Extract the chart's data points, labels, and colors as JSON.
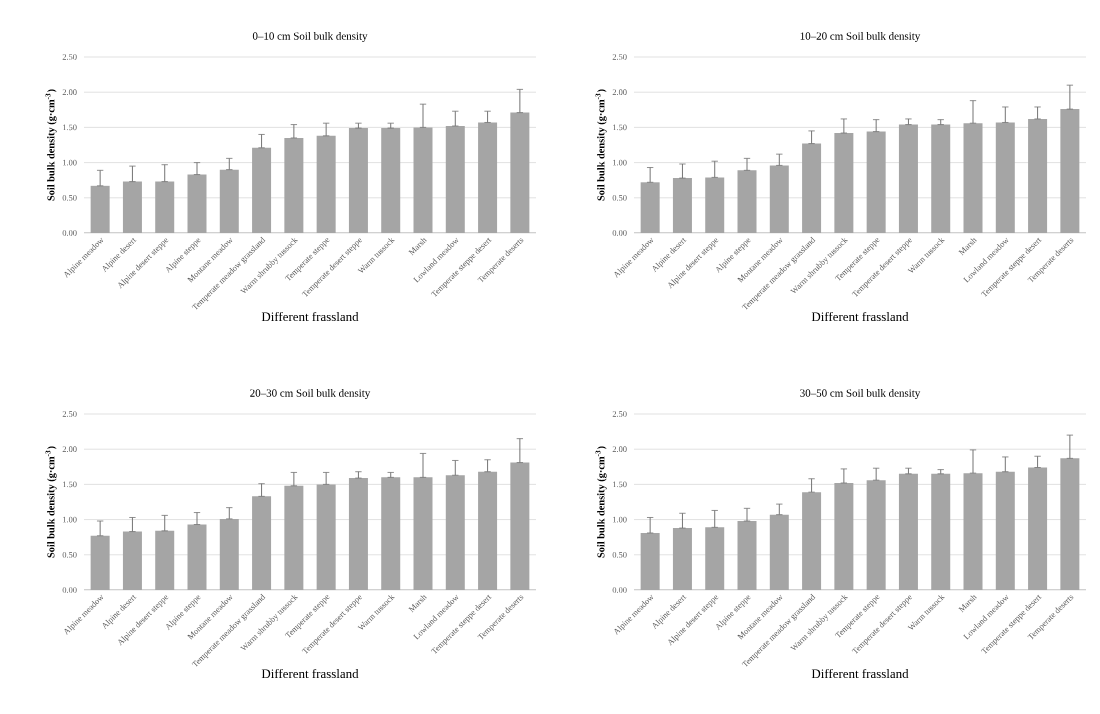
{
  "chart_data": [
    {
      "type": "bar",
      "title": "0–10 cm Soil bulk density",
      "xlabel": "Different frassland",
      "ylabel": "Soil bulk density (g·cm$^{-3}$)",
      "color": "#a5a5a5",
      "grid": "y",
      "ylim": [
        0,
        2.5
      ],
      "yticks": [
        {
          "value": 0,
          "label": "0.00"
        },
        {
          "value": 0.5,
          "label": "0.50"
        },
        {
          "value": 1,
          "label": "1.00"
        },
        {
          "value": 1.5,
          "label": "1.50"
        },
        {
          "value": 2,
          "label": "2.00"
        },
        {
          "value": 2.5,
          "label": "2.50"
        }
      ],
      "categories": [
        "Alpine meadow",
        "Alpine desert",
        "Alpine desert steppe",
        "Alpine steppe",
        "Montane meadow",
        "Temperate meadow grassland",
        "Warm shrubby tussock",
        "Temperate steppe",
        "Temperate desert steppe",
        "Warm tussock",
        "Marsh",
        "Lowland meadow",
        "Temperate steppe desert",
        "Temperate deserts"
      ],
      "values": [
        0.67,
        0.73,
        0.73,
        0.83,
        0.9,
        1.21,
        1.35,
        1.38,
        1.49,
        1.49,
        1.5,
        1.52,
        1.57,
        1.71
      ],
      "errors": [
        [
          0.67,
          0.89
        ],
        [
          0.73,
          0.95
        ],
        [
          0.73,
          0.97
        ],
        [
          0.83,
          1.0
        ],
        [
          0.9,
          1.06
        ],
        [
          1.21,
          1.4
        ],
        [
          1.35,
          1.54
        ],
        [
          1.38,
          1.56
        ],
        [
          1.49,
          1.56
        ],
        [
          1.49,
          1.56
        ],
        [
          1.5,
          1.83
        ],
        [
          1.52,
          1.73
        ],
        [
          1.57,
          1.73
        ],
        [
          1.71,
          2.04
        ]
      ]
    },
    {
      "type": "bar",
      "title": "10–20 cm Soil bulk density",
      "xlabel": "Different frassland",
      "ylabel": "Soil bulk density (g·cm$^{-3}$)",
      "color": "#a5a5a5",
      "grid": "y",
      "ylim": [
        0,
        2.5
      ],
      "yticks": [
        {
          "value": 0,
          "label": "0.00"
        },
        {
          "value": 0.5,
          "label": "0.50"
        },
        {
          "value": 1,
          "label": "1.00"
        },
        {
          "value": 1.5,
          "label": "1.50"
        },
        {
          "value": 2,
          "label": "2.00"
        },
        {
          "value": 2.5,
          "label": "2.50"
        }
      ],
      "categories": [
        "Alpine meadow",
        "Alpine desert",
        "Alpine desert steppe",
        "Alpine steppe",
        "Montane meadow",
        "Temperate meadow grassland",
        "Warm shrubby tussock",
        "Temperate steppe",
        "Temperate desert steppe",
        "Warm tussock",
        "Marsh",
        "Lowland meadow",
        "Temperate steppe desert",
        "Temperate deserts"
      ],
      "values": [
        0.72,
        0.78,
        0.79,
        0.89,
        0.96,
        1.27,
        1.42,
        1.44,
        1.54,
        1.54,
        1.56,
        1.57,
        1.62,
        1.76
      ],
      "errors": [
        [
          0.72,
          0.93
        ],
        [
          0.78,
          0.98
        ],
        [
          0.79,
          1.02
        ],
        [
          0.89,
          1.06
        ],
        [
          0.96,
          1.12
        ],
        [
          1.27,
          1.45
        ],
        [
          1.42,
          1.62
        ],
        [
          1.44,
          1.61
        ],
        [
          1.54,
          1.62
        ],
        [
          1.54,
          1.61
        ],
        [
          1.56,
          1.88
        ],
        [
          1.57,
          1.79
        ],
        [
          1.62,
          1.79
        ],
        [
          1.76,
          2.1
        ]
      ]
    },
    {
      "type": "bar",
      "title": "20–30 cm Soil bulk density",
      "xlabel": "Different frassland",
      "ylabel": "Soil bulk density (g·cm$^{-3}$)",
      "color": "#a5a5a5",
      "grid": "y",
      "ylim": [
        0,
        2.5
      ],
      "yticks": [
        {
          "value": 0,
          "label": "0.00"
        },
        {
          "value": 0.5,
          "label": "0.50"
        },
        {
          "value": 1,
          "label": "1.00"
        },
        {
          "value": 1.5,
          "label": "1.50"
        },
        {
          "value": 2,
          "label": "2.00"
        },
        {
          "value": 2.5,
          "label": "2.50"
        }
      ],
      "categories": [
        "Alpine meadow",
        "Alpine desert",
        "Alpine desert steppe",
        "Alpine steppe",
        "Montane meadow",
        "Temperate meadow grassland",
        "Warm shrubby tussock",
        "Temperate steppe",
        "Temperate desert steppe",
        "Warm tussock",
        "Marsh",
        "Lowland meadow",
        "Temperate steppe desert",
        "Temperate deserts"
      ],
      "values": [
        0.77,
        0.83,
        0.84,
        0.93,
        1.01,
        1.33,
        1.48,
        1.5,
        1.59,
        1.6,
        1.6,
        1.63,
        1.68,
        1.81
      ],
      "errors": [
        [
          0.77,
          0.98
        ],
        [
          0.83,
          1.03
        ],
        [
          0.84,
          1.06
        ],
        [
          0.93,
          1.1
        ],
        [
          1.01,
          1.17
        ],
        [
          1.33,
          1.51
        ],
        [
          1.48,
          1.67
        ],
        [
          1.5,
          1.67
        ],
        [
          1.59,
          1.68
        ],
        [
          1.6,
          1.67
        ],
        [
          1.6,
          1.94
        ],
        [
          1.63,
          1.84
        ],
        [
          1.68,
          1.85
        ],
        [
          1.81,
          2.15
        ]
      ]
    },
    {
      "type": "bar",
      "title": "30–50 cm Soil bulk density",
      "xlabel": "Different frassland",
      "ylabel": "Soil bulk density (g·cm$^{-3}$)",
      "color": "#a5a5a5",
      "grid": "y",
      "ylim": [
        0,
        2.5
      ],
      "yticks": [
        {
          "value": 0,
          "label": "0.00"
        },
        {
          "value": 0.5,
          "label": "0.50"
        },
        {
          "value": 1,
          "label": "1.00"
        },
        {
          "value": 1.5,
          "label": "1.50"
        },
        {
          "value": 2,
          "label": "2.00"
        },
        {
          "value": 2.5,
          "label": "2.50"
        }
      ],
      "categories": [
        "Alpine meadow",
        "Alpine desert",
        "Alpine desert steppe",
        "Alpine steppe",
        "Montane meadow",
        "Temperate meadow grassland",
        "Warm shrubby tussock",
        "Temperate steppe",
        "Temperate desert steppe",
        "Warm tussock",
        "Marsh",
        "Lowland meadow",
        "Temperate steppe desert",
        "Temperate deserts"
      ],
      "values": [
        0.81,
        0.88,
        0.89,
        0.98,
        1.07,
        1.39,
        1.52,
        1.56,
        1.65,
        1.65,
        1.66,
        1.68,
        1.74,
        1.87
      ],
      "errors": [
        [
          0.81,
          1.03
        ],
        [
          0.88,
          1.09
        ],
        [
          0.89,
          1.13
        ],
        [
          0.98,
          1.16
        ],
        [
          1.07,
          1.22
        ],
        [
          1.39,
          1.58
        ],
        [
          1.52,
          1.72
        ],
        [
          1.56,
          1.73
        ],
        [
          1.65,
          1.73
        ],
        [
          1.65,
          1.71
        ],
        [
          1.66,
          1.99
        ],
        [
          1.68,
          1.89
        ],
        [
          1.74,
          1.9
        ],
        [
          1.87,
          2.2
        ]
      ]
    }
  ]
}
